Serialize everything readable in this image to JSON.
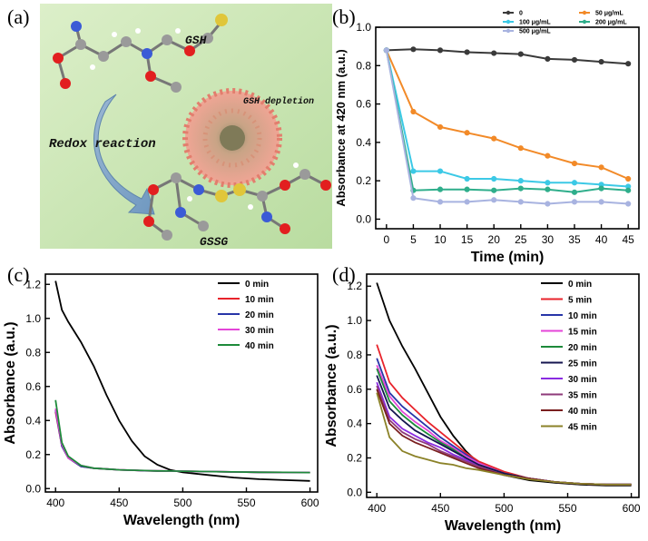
{
  "panels": {
    "a": {
      "label": "(a)",
      "texts": {
        "gsh": "GSH",
        "gsh_depletion": "GSH depletion",
        "redox": "Redox reaction",
        "gssg": "GSSG"
      },
      "colors": {
        "background": "#c8e6b3",
        "arrow": "#7fa7c9",
        "nanoparticle": "#e99a8c"
      }
    },
    "b": {
      "label": "(b)"
    },
    "c": {
      "label": "(c)"
    },
    "d": {
      "label": "(d)"
    }
  },
  "chart_data": [
    {
      "id": "b",
      "type": "line",
      "xlabel": "Time (min)",
      "ylabel": "Absorbance at 420 nm (a.u.)",
      "xlim": [
        -2,
        47
      ],
      "ylim": [
        -0.05,
        1.0
      ],
      "xticks": [
        0,
        5,
        10,
        15,
        20,
        25,
        30,
        35,
        40,
        45
      ],
      "yticks": [
        0.0,
        0.2,
        0.4,
        0.6,
        0.8,
        1.0
      ],
      "x": [
        0,
        5,
        10,
        15,
        20,
        25,
        30,
        35,
        40,
        45
      ],
      "legend_position": "top-right",
      "series": [
        {
          "name": "0",
          "color": "#3a3a3a",
          "values": [
            0.88,
            0.885,
            0.88,
            0.87,
            0.865,
            0.86,
            0.835,
            0.83,
            0.82,
            0.81
          ]
        },
        {
          "name": "50 μg/mL",
          "color": "#f28a28",
          "values": [
            0.88,
            0.56,
            0.48,
            0.45,
            0.42,
            0.37,
            0.33,
            0.29,
            0.27,
            0.21
          ]
        },
        {
          "name": "100 μg/mL",
          "color": "#3cc9e6",
          "values": [
            0.88,
            0.25,
            0.25,
            0.21,
            0.21,
            0.2,
            0.19,
            0.19,
            0.18,
            0.17
          ]
        },
        {
          "name": "200 μg/mL",
          "color": "#2fae8b",
          "values": [
            0.88,
            0.15,
            0.155,
            0.155,
            0.15,
            0.16,
            0.155,
            0.14,
            0.16,
            0.15
          ]
        },
        {
          "name": "500 μg/mL",
          "color": "#a8b3e0",
          "values": [
            0.88,
            0.11,
            0.09,
            0.09,
            0.1,
            0.09,
            0.08,
            0.09,
            0.09,
            0.08
          ]
        }
      ]
    },
    {
      "id": "c",
      "type": "line",
      "xlabel": "Wavelength (nm)",
      "ylabel": "Absorbance (a.u.)",
      "xlim": [
        392,
        606
      ],
      "ylim": [
        -0.02,
        1.26
      ],
      "xticks": [
        400,
        450,
        500,
        550,
        600
      ],
      "yticks": [
        0.0,
        0.2,
        0.4,
        0.6,
        0.8,
        1.0,
        1.2
      ],
      "x": [
        400,
        405,
        410,
        420,
        430,
        440,
        450,
        460,
        470,
        480,
        490,
        500,
        520,
        540,
        560,
        580,
        600
      ],
      "legend_position": "top-right",
      "series": [
        {
          "name": "0 min",
          "color": "#000000",
          "values": [
            1.22,
            1.05,
            0.98,
            0.86,
            0.72,
            0.55,
            0.4,
            0.28,
            0.19,
            0.14,
            0.11,
            0.095,
            0.08,
            0.065,
            0.055,
            0.05,
            0.045
          ]
        },
        {
          "name": "10 min",
          "color": "#e8232b",
          "values": [
            0.45,
            0.25,
            0.18,
            0.13,
            0.12,
            0.115,
            0.11,
            0.108,
            0.105,
            0.104,
            0.103,
            0.102,
            0.1,
            0.098,
            0.096,
            0.095,
            0.094
          ]
        },
        {
          "name": "20 min",
          "color": "#2735a8",
          "values": [
            0.46,
            0.25,
            0.18,
            0.13,
            0.12,
            0.115,
            0.11,
            0.108,
            0.105,
            0.104,
            0.103,
            0.102,
            0.1,
            0.098,
            0.096,
            0.095,
            0.094
          ]
        },
        {
          "name": "30 min",
          "color": "#e445d8",
          "values": [
            0.47,
            0.26,
            0.18,
            0.135,
            0.12,
            0.115,
            0.11,
            0.108,
            0.106,
            0.104,
            0.103,
            0.102,
            0.1,
            0.098,
            0.096,
            0.095,
            0.094
          ]
        },
        {
          "name": "40 min",
          "color": "#1d8a3a",
          "values": [
            0.52,
            0.27,
            0.19,
            0.135,
            0.12,
            0.115,
            0.11,
            0.108,
            0.106,
            0.104,
            0.103,
            0.102,
            0.1,
            0.098,
            0.096,
            0.095,
            0.094
          ]
        }
      ]
    },
    {
      "id": "d",
      "type": "line",
      "xlabel": "Wavelength (nm)",
      "ylabel": "Absorbance (a.u.)",
      "xlim": [
        392,
        606
      ],
      "ylim": [
        -0.03,
        1.27
      ],
      "xticks": [
        400,
        450,
        500,
        550,
        600
      ],
      "yticks": [
        0.0,
        0.2,
        0.4,
        0.6,
        0.8,
        1.0,
        1.2
      ],
      "x": [
        400,
        410,
        420,
        430,
        440,
        450,
        460,
        470,
        480,
        500,
        520,
        540,
        560,
        580,
        600
      ],
      "legend_position": "top-right",
      "series": [
        {
          "name": "0 min",
          "color": "#000000",
          "values": [
            1.22,
            1.0,
            0.85,
            0.72,
            0.58,
            0.44,
            0.33,
            0.24,
            0.17,
            0.1,
            0.07,
            0.055,
            0.045,
            0.04,
            0.04
          ]
        },
        {
          "name": "5 min",
          "color": "#e8232b",
          "values": [
            0.86,
            0.64,
            0.55,
            0.48,
            0.41,
            0.35,
            0.29,
            0.23,
            0.18,
            0.12,
            0.08,
            0.06,
            0.05,
            0.045,
            0.045
          ]
        },
        {
          "name": "10 min",
          "color": "#2735a8",
          "values": [
            0.78,
            0.58,
            0.5,
            0.44,
            0.38,
            0.32,
            0.27,
            0.22,
            0.17,
            0.11,
            0.08,
            0.06,
            0.05,
            0.045,
            0.045
          ]
        },
        {
          "name": "15 min",
          "color": "#e445d8",
          "values": [
            0.74,
            0.56,
            0.47,
            0.41,
            0.36,
            0.3,
            0.26,
            0.21,
            0.17,
            0.11,
            0.08,
            0.06,
            0.05,
            0.045,
            0.045
          ]
        },
        {
          "name": "20 min",
          "color": "#1d8a3a",
          "values": [
            0.72,
            0.53,
            0.45,
            0.39,
            0.34,
            0.29,
            0.25,
            0.2,
            0.16,
            0.11,
            0.08,
            0.06,
            0.05,
            0.045,
            0.045
          ]
        },
        {
          "name": "25 min",
          "color": "#14154f",
          "values": [
            0.68,
            0.49,
            0.42,
            0.36,
            0.32,
            0.28,
            0.24,
            0.2,
            0.16,
            0.11,
            0.08,
            0.06,
            0.05,
            0.045,
            0.045
          ]
        },
        {
          "name": "30 min",
          "color": "#8a2be2",
          "values": [
            0.64,
            0.44,
            0.37,
            0.33,
            0.29,
            0.26,
            0.22,
            0.19,
            0.15,
            0.1,
            0.08,
            0.06,
            0.05,
            0.045,
            0.045
          ]
        },
        {
          "name": "35 min",
          "color": "#8e3a7a",
          "values": [
            0.62,
            0.42,
            0.35,
            0.31,
            0.28,
            0.24,
            0.21,
            0.18,
            0.15,
            0.1,
            0.08,
            0.06,
            0.05,
            0.045,
            0.045
          ]
        },
        {
          "name": "40 min",
          "color": "#7a1f1f",
          "values": [
            0.6,
            0.4,
            0.33,
            0.29,
            0.26,
            0.23,
            0.2,
            0.17,
            0.14,
            0.1,
            0.08,
            0.06,
            0.05,
            0.045,
            0.045
          ]
        },
        {
          "name": "45 min",
          "color": "#8b8228",
          "values": [
            0.58,
            0.32,
            0.24,
            0.21,
            0.19,
            0.17,
            0.16,
            0.14,
            0.13,
            0.1,
            0.075,
            0.06,
            0.05,
            0.045,
            0.045
          ]
        }
      ]
    }
  ]
}
